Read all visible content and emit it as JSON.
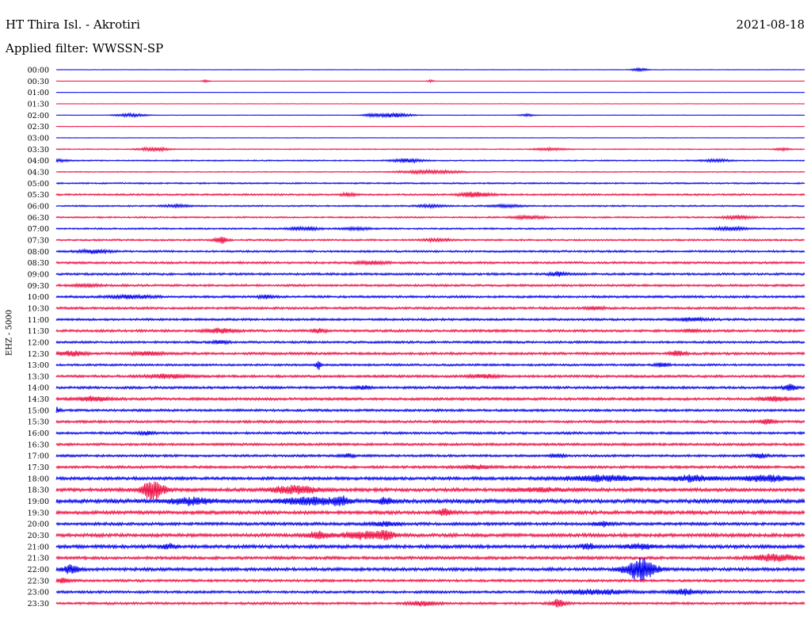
{
  "header": {
    "station": "HT Thira Isl. - Akrotiri",
    "date": "2021-08-18",
    "filter": "Applied filter: WWSSN-SP",
    "channel": "EHZ - 5000"
  },
  "colors": {
    "even_trace": "#0000ee",
    "odd_trace": "#ee1144"
  },
  "rows": [
    {
      "label": "00:00",
      "noise": 0.4,
      "events": [
        [
          0.78,
          3,
          0.01
        ]
      ]
    },
    {
      "label": "00:30",
      "noise": 0.3,
      "events": [
        [
          0.2,
          2,
          0.005
        ],
        [
          0.5,
          2,
          0.005
        ]
      ]
    },
    {
      "label": "01:00",
      "noise": 0.3,
      "events": []
    },
    {
      "label": "01:30",
      "noise": 0.3,
      "events": []
    },
    {
      "label": "02:00",
      "noise": 0.4,
      "events": [
        [
          0.1,
          3,
          0.02
        ],
        [
          0.45,
          4,
          0.025
        ],
        [
          0.42,
          2,
          0.01
        ],
        [
          0.63,
          2,
          0.01
        ]
      ]
    },
    {
      "label": "02:30",
      "noise": 0.4,
      "events": []
    },
    {
      "label": "03:00",
      "noise": 0.4,
      "events": []
    },
    {
      "label": "03:30",
      "noise": 0.8,
      "events": [
        [
          0.13,
          3,
          0.02
        ],
        [
          0.66,
          2,
          0.02
        ],
        [
          0.97,
          2,
          0.01
        ]
      ]
    },
    {
      "label": "04:00",
      "noise": 1.0,
      "events": [
        [
          0.47,
          3,
          0.02
        ],
        [
          0.0,
          2,
          0.02
        ],
        [
          0.88,
          2,
          0.02
        ]
      ]
    },
    {
      "label": "04:30",
      "noise": 0.8,
      "events": [
        [
          0.5,
          3,
          0.04
        ]
      ]
    },
    {
      "label": "05:00",
      "noise": 1.2,
      "events": []
    },
    {
      "label": "05:30",
      "noise": 1.5,
      "events": [
        [
          0.56,
          5,
          0.02
        ],
        [
          0.39,
          3,
          0.01
        ]
      ]
    },
    {
      "label": "06:00",
      "noise": 1.2,
      "events": [
        [
          0.16,
          2,
          0.02
        ],
        [
          0.5,
          2,
          0.02
        ],
        [
          0.6,
          2,
          0.02
        ]
      ]
    },
    {
      "label": "06:30",
      "noise": 1.3,
      "events": [
        [
          0.63,
          3,
          0.02
        ],
        [
          0.91,
          3,
          0.02
        ]
      ]
    },
    {
      "label": "07:00",
      "noise": 1.3,
      "events": [
        [
          0.33,
          3,
          0.02
        ],
        [
          0.9,
          3,
          0.02
        ],
        [
          0.4,
          2,
          0.02
        ]
      ]
    },
    {
      "label": "07:30",
      "noise": 1.4,
      "events": [
        [
          0.22,
          6,
          0.008
        ],
        [
          0.51,
          2,
          0.02
        ]
      ]
    },
    {
      "label": "08:00",
      "noise": 1.6,
      "events": [
        [
          0.05,
          3,
          0.02
        ]
      ]
    },
    {
      "label": "08:30",
      "noise": 1.8,
      "events": [
        [
          0.42,
          3,
          0.02
        ]
      ]
    },
    {
      "label": "09:00",
      "noise": 1.8,
      "events": [
        [
          0.67,
          4,
          0.01
        ]
      ]
    },
    {
      "label": "09:30",
      "noise": 1.8,
      "events": [
        [
          0.04,
          2,
          0.02
        ]
      ]
    },
    {
      "label": "10:00",
      "noise": 1.8,
      "events": [
        [
          0.1,
          3,
          0.03
        ],
        [
          0.28,
          3,
          0.01
        ]
      ]
    },
    {
      "label": "10:30",
      "noise": 1.9,
      "events": [
        [
          0.72,
          3,
          0.01
        ]
      ]
    },
    {
      "label": "11:00",
      "noise": 1.8,
      "events": [
        [
          0.85,
          3,
          0.02
        ]
      ]
    },
    {
      "label": "11:30",
      "noise": 2.0,
      "events": [
        [
          0.22,
          4,
          0.02
        ],
        [
          0.35,
          3,
          0.01
        ],
        [
          0.85,
          3,
          0.01
        ]
      ]
    },
    {
      "label": "12:00",
      "noise": 1.8,
      "events": [
        [
          0.22,
          3,
          0.01
        ]
      ]
    },
    {
      "label": "12:30",
      "noise": 2.0,
      "events": [
        [
          0.02,
          4,
          0.02
        ],
        [
          0.12,
          3,
          0.02
        ],
        [
          0.83,
          5,
          0.01
        ]
      ]
    },
    {
      "label": "13:00",
      "noise": 1.7,
      "events": [
        [
          0.35,
          10,
          0.003
        ],
        [
          0.81,
          3,
          0.01
        ]
      ]
    },
    {
      "label": "13:30",
      "noise": 2.0,
      "events": [
        [
          0.15,
          3,
          0.03
        ],
        [
          0.57,
          3,
          0.02
        ]
      ]
    },
    {
      "label": "14:00",
      "noise": 2.0,
      "events": [
        [
          0.41,
          3,
          0.01
        ],
        [
          0.98,
          5,
          0.01
        ]
      ]
    },
    {
      "label": "14:30",
      "noise": 2.1,
      "events": [
        [
          0.05,
          4,
          0.02
        ],
        [
          0.96,
          4,
          0.02
        ]
      ]
    },
    {
      "label": "15:00",
      "noise": 1.9,
      "events": [
        [
          0.0,
          5,
          0.005
        ]
      ]
    },
    {
      "label": "15:30",
      "noise": 2.0,
      "events": [
        [
          0.95,
          4,
          0.01
        ]
      ]
    },
    {
      "label": "16:00",
      "noise": 1.9,
      "events": [
        [
          0.12,
          3,
          0.01
        ]
      ]
    },
    {
      "label": "16:30",
      "noise": 2.0,
      "events": []
    },
    {
      "label": "17:00",
      "noise": 1.9,
      "events": [
        [
          0.39,
          3,
          0.01
        ],
        [
          0.67,
          3,
          0.01
        ],
        [
          0.94,
          4,
          0.01
        ]
      ]
    },
    {
      "label": "17:30",
      "noise": 2.1,
      "events": [
        [
          0.56,
          3,
          0.02
        ]
      ]
    },
    {
      "label": "18:00",
      "noise": 2.5,
      "events": [
        [
          0.73,
          5,
          0.05
        ],
        [
          0.85,
          5,
          0.03
        ],
        [
          0.95,
          5,
          0.04
        ]
      ]
    },
    {
      "label": "18:30",
      "noise": 2.8,
      "events": [
        [
          0.13,
          18,
          0.015
        ],
        [
          0.32,
          7,
          0.03
        ],
        [
          0.65,
          3,
          0.03
        ]
      ]
    },
    {
      "label": "19:00",
      "noise": 3.2,
      "events": [
        [
          0.18,
          6,
          0.03
        ],
        [
          0.34,
          6,
          0.04
        ],
        [
          0.38,
          7,
          0.01
        ],
        [
          0.44,
          6,
          0.01
        ]
      ]
    },
    {
      "label": "19:30",
      "noise": 2.8,
      "events": [
        [
          0.52,
          6,
          0.01
        ]
      ]
    },
    {
      "label": "20:00",
      "noise": 2.4,
      "events": [
        [
          0.44,
          3,
          0.02
        ],
        [
          0.73,
          4,
          0.01
        ]
      ]
    },
    {
      "label": "20:30",
      "noise": 2.8,
      "events": [
        [
          0.35,
          6,
          0.015
        ],
        [
          0.41,
          6,
          0.03
        ],
        [
          0.44,
          7,
          0.01
        ]
      ]
    },
    {
      "label": "21:00",
      "noise": 2.8,
      "events": [
        [
          0.15,
          4,
          0.01
        ],
        [
          0.71,
          4,
          0.01
        ],
        [
          0.78,
          4,
          0.02
        ]
      ]
    },
    {
      "label": "21:30",
      "noise": 2.4,
      "events": [
        [
          0.96,
          6,
          0.03
        ]
      ]
    },
    {
      "label": "22:00",
      "noise": 2.6,
      "events": [
        [
          0.02,
          9,
          0.01
        ],
        [
          0.78,
          20,
          0.02
        ]
      ]
    },
    {
      "label": "22:30",
      "noise": 2.0,
      "events": [
        [
          0.01,
          4,
          0.01
        ]
      ]
    },
    {
      "label": "23:00",
      "noise": 2.0,
      "events": [
        [
          0.72,
          4,
          0.05
        ],
        [
          0.84,
          5,
          0.02
        ]
      ]
    },
    {
      "label": "23:30",
      "noise": 1.9,
      "events": [
        [
          0.49,
          4,
          0.02
        ],
        [
          0.67,
          7,
          0.01
        ]
      ]
    }
  ]
}
